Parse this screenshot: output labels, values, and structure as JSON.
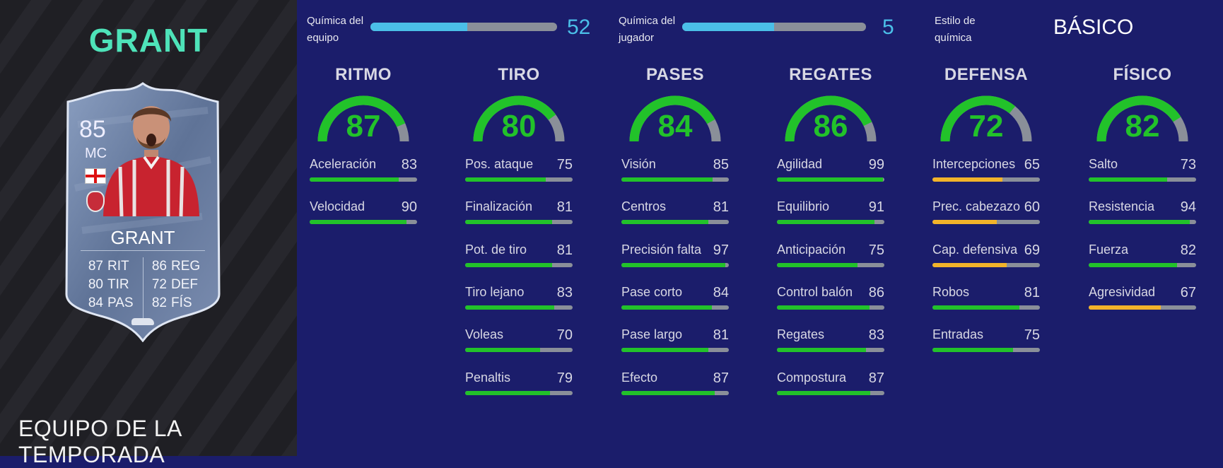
{
  "player": {
    "name_header": "GRANT",
    "team_title": "EQUIPO DE LA TEMPORADA",
    "card": {
      "rating": "85",
      "position": "MC",
      "name": "GRANT",
      "stats_left": [
        {
          "v": "87",
          "k": "RIT"
        },
        {
          "v": "80",
          "k": "TIR"
        },
        {
          "v": "84",
          "k": "PAS"
        }
      ],
      "stats_right": [
        {
          "v": "86",
          "k": "REG"
        },
        {
          "v": "72",
          "k": "DEF"
        },
        {
          "v": "82",
          "k": "FÍS"
        }
      ],
      "icons": [
        "england-flag-icon",
        "club-crest-icon",
        "boot-icon"
      ]
    }
  },
  "chemistry": {
    "team": {
      "label_line1": "Química del",
      "label_line2": "equipo",
      "value": "52",
      "fill_fraction": 0.52
    },
    "player": {
      "label_line1": "Química del",
      "label_line2": "jugador",
      "value": "5",
      "fill_fraction": 0.5
    },
    "style": {
      "label_line1": "Estilo de",
      "label_line2": "química",
      "value": "BÁSICO"
    }
  },
  "colors": {
    "background": "#1b1d6b",
    "accent_name": "#4ee3b9",
    "chem_blue": "#4bbfe8",
    "stat_green": "#22c22a",
    "stat_yellow": "#f2b32a",
    "bar_track": "#8a8f99"
  },
  "categories": [
    {
      "title": "RITMO",
      "value": "87",
      "stats": [
        {
          "label": "Aceleración",
          "value": "83"
        },
        {
          "label": "Velocidad",
          "value": "90"
        }
      ]
    },
    {
      "title": "TIRO",
      "value": "80",
      "stats": [
        {
          "label": "Pos. ataque",
          "value": "75"
        },
        {
          "label": "Finalización",
          "value": "81"
        },
        {
          "label": "Pot. de tiro",
          "value": "81"
        },
        {
          "label": "Tiro lejano",
          "value": "83"
        },
        {
          "label": "Voleas",
          "value": "70"
        },
        {
          "label": "Penaltis",
          "value": "79"
        }
      ]
    },
    {
      "title": "PASES",
      "value": "84",
      "stats": [
        {
          "label": "Visión",
          "value": "85"
        },
        {
          "label": "Centros",
          "value": "81"
        },
        {
          "label": "Precisión falta",
          "value": "97"
        },
        {
          "label": "Pase corto",
          "value": "84"
        },
        {
          "label": "Pase largo",
          "value": "81"
        },
        {
          "label": "Efecto",
          "value": "87"
        }
      ]
    },
    {
      "title": "REGATES",
      "value": "86",
      "stats": [
        {
          "label": "Agilidad",
          "value": "99"
        },
        {
          "label": "Equilibrio",
          "value": "91"
        },
        {
          "label": "Anticipación",
          "value": "75"
        },
        {
          "label": "Control balón",
          "value": "86"
        },
        {
          "label": "Regates",
          "value": "83"
        },
        {
          "label": "Compostura",
          "value": "87"
        }
      ]
    },
    {
      "title": "DEFENSA",
      "value": "72",
      "stats": [
        {
          "label": "Intercepciones",
          "value": "65"
        },
        {
          "label": "Prec. cabezazo",
          "value": "60"
        },
        {
          "label": "Cap. defensiva",
          "value": "69"
        },
        {
          "label": "Robos",
          "value": "81"
        },
        {
          "label": "Entradas",
          "value": "75"
        }
      ]
    },
    {
      "title": "FÍSICO",
      "value": "82",
      "stats": [
        {
          "label": "Salto",
          "value": "73"
        },
        {
          "label": "Resistencia",
          "value": "94"
        },
        {
          "label": "Fuerza",
          "value": "82"
        },
        {
          "label": "Agresividad",
          "value": "67"
        }
      ]
    }
  ]
}
